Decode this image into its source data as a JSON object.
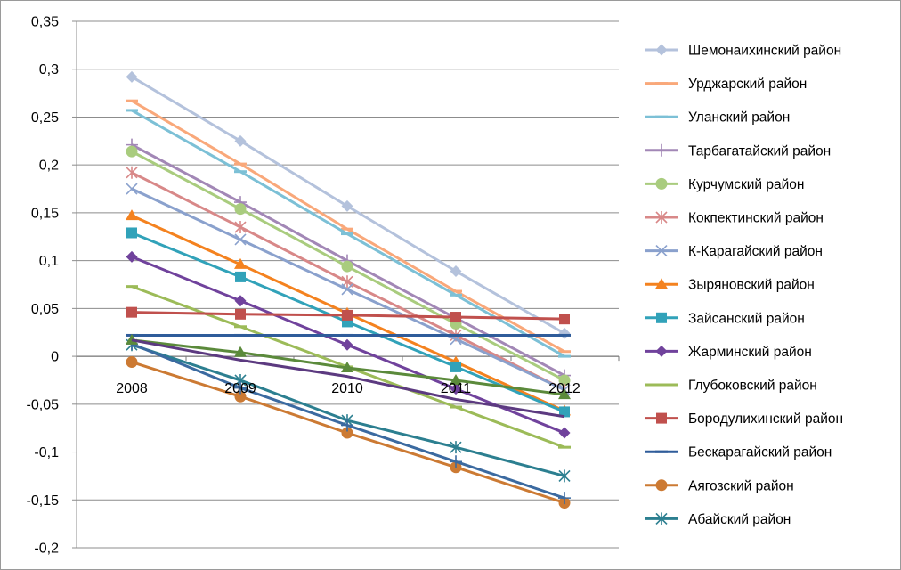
{
  "chart_data": {
    "type": "line",
    "x": [
      "2008",
      "2009",
      "2010",
      "2011",
      "2012"
    ],
    "ylim": [
      -0.2,
      0.35
    ],
    "yticks": [
      "0,35",
      "0,3",
      "0,25",
      "0,2",
      "0,15",
      "0,1",
      "0,05",
      "0",
      "-0,05",
      "-0,1",
      "-0,15",
      "-0,2"
    ],
    "grid": "horizontal",
    "legend_position": "right",
    "series": [
      {
        "name": "Шемонаихинский район",
        "color": "#b4c2dc",
        "marker": "diamond",
        "values": [
          0.292,
          0.225,
          0.157,
          0.089,
          0.024
        ]
      },
      {
        "name": "Урджарский район",
        "color": "#f9a87a",
        "marker": "dash",
        "values": [
          0.267,
          0.201,
          0.133,
          0.068,
          0.005
        ]
      },
      {
        "name": "Уланский район",
        "color": "#7cc0d6",
        "marker": "dash",
        "values": [
          0.257,
          0.193,
          0.128,
          0.064,
          0.0
        ]
      },
      {
        "name": "Тарбагатайский район",
        "color": "#a287b6",
        "marker": "plus",
        "values": [
          0.221,
          0.161,
          0.1,
          0.04,
          -0.02
        ]
      },
      {
        "name": "Курчумский район",
        "color": "#a9cc7e",
        "marker": "circle",
        "values": [
          0.214,
          0.154,
          0.094,
          0.034,
          -0.025
        ]
      },
      {
        "name": "Кокпектинский район",
        "color": "#d88888",
        "marker": "star",
        "values": [
          0.192,
          0.135,
          0.078,
          0.022,
          -0.035
        ]
      },
      {
        "name": "К-Карагайский район",
        "color": "#8aa1cd",
        "marker": "x",
        "values": [
          0.175,
          0.122,
          0.07,
          0.018,
          -0.035
        ]
      },
      {
        "name": "Зыряновский район",
        "color": "#f4821f",
        "marker": "triangle",
        "values": [
          0.147,
          0.096,
          0.045,
          -0.006,
          -0.057
        ]
      },
      {
        "name": "Зайсанский район",
        "color": "#31a2b9",
        "marker": "square",
        "values": [
          0.129,
          0.083,
          0.036,
          -0.011,
          -0.058
        ]
      },
      {
        "name": "Жарминский район",
        "color": "#70429c",
        "marker": "diamond",
        "values": [
          0.104,
          0.058,
          0.012,
          -0.034,
          -0.08
        ]
      },
      {
        "name": "Глубоковский район",
        "color": "#9cbb58",
        "marker": "dash",
        "values": [
          0.073,
          0.031,
          -0.011,
          -0.053,
          -0.095
        ]
      },
      {
        "name": "Бородулихинский район",
        "color": "#c0504d",
        "marker": "square",
        "values": [
          0.046,
          0.044,
          0.043,
          0.041,
          0.039
        ]
      },
      {
        "name": "Бескарагайский район",
        "color": "#2f5c9a",
        "marker": "dash",
        "values": [
          0.022,
          0.022,
          0.022,
          0.022,
          0.022
        ]
      },
      {
        "name": "Аягозский район",
        "color": "#cc7a33",
        "marker": "circle",
        "values": [
          -0.006,
          -0.042,
          -0.08,
          -0.116,
          -0.153
        ]
      },
      {
        "name": "Абайский район",
        "color": "#2c7f90",
        "marker": "star",
        "values": [
          0.012,
          -0.025,
          -0.067,
          -0.095,
          -0.125
        ]
      },
      {
        "name": "",
        "color": "#3b6aa0",
        "marker": "plus",
        "values": [
          0.013,
          -0.033,
          -0.072,
          -0.11,
          -0.148
        ]
      },
      {
        "name": "",
        "color": "#5b8a3b",
        "marker": "triangle",
        "values": [
          0.017,
          0.004,
          -0.012,
          -0.025,
          -0.04
        ]
      },
      {
        "name": "",
        "color": "#5c3a80",
        "marker": "none",
        "values": [
          0.017,
          -0.004,
          -0.021,
          -0.045,
          -0.063
        ]
      }
    ]
  }
}
